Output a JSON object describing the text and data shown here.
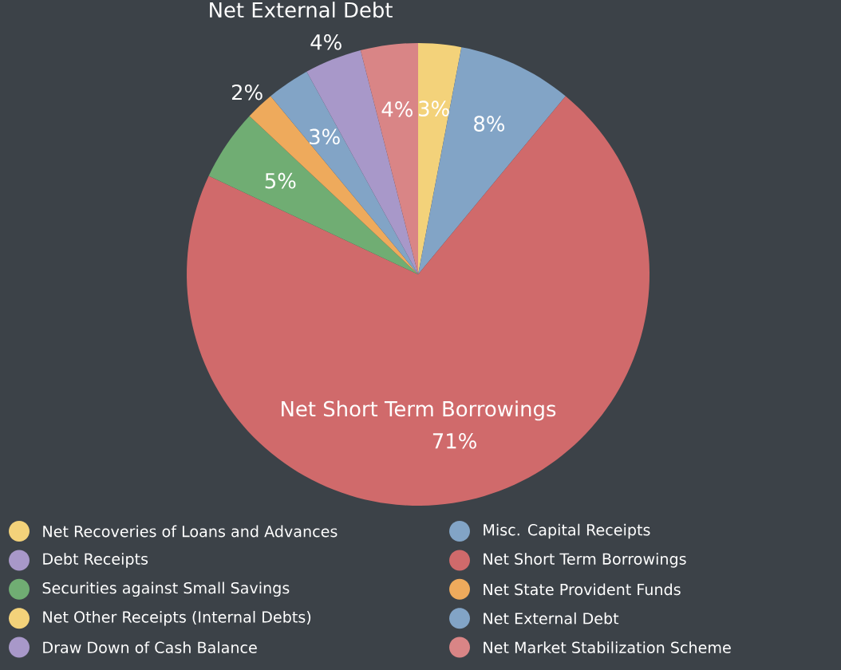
{
  "chart_data": {
    "type": "pie",
    "categories": [
      "Net Recoveries of Loans and Advances",
      "Misc. Capital Receipts",
      "Debt Receipts",
      "Net Short Term Borrowings",
      "Securities against Small Savings",
      "Net State Provident Funds",
      "Net Other Receipts (Internal Debts)",
      "Net External Debt",
      "Draw Down of Cash Balance",
      "Net Market Stabilization Scheme"
    ],
    "values": [
      3,
      8,
      0,
      71,
      5,
      2,
      0,
      3,
      4,
      4
    ],
    "colors": [
      "#f3d27a",
      "#82a4c6",
      "#a898c9",
      "#d06a6b",
      "#70ad73",
      "#eeaa5c",
      "#f3d27a",
      "#82a4c6",
      "#a898c9",
      "#d98586"
    ],
    "value_labels": [
      "3%",
      "8%",
      null,
      "71%",
      "5%",
      "2%",
      null,
      "3%",
      "4%",
      "4%"
    ],
    "annotations": [
      {
        "text": "Net Short Term Borrowings",
        "x": "Net Short Term Borrowings"
      },
      {
        "text": "Net External Debt",
        "x": "Net External Debt"
      }
    ],
    "legend": "bottom"
  }
}
